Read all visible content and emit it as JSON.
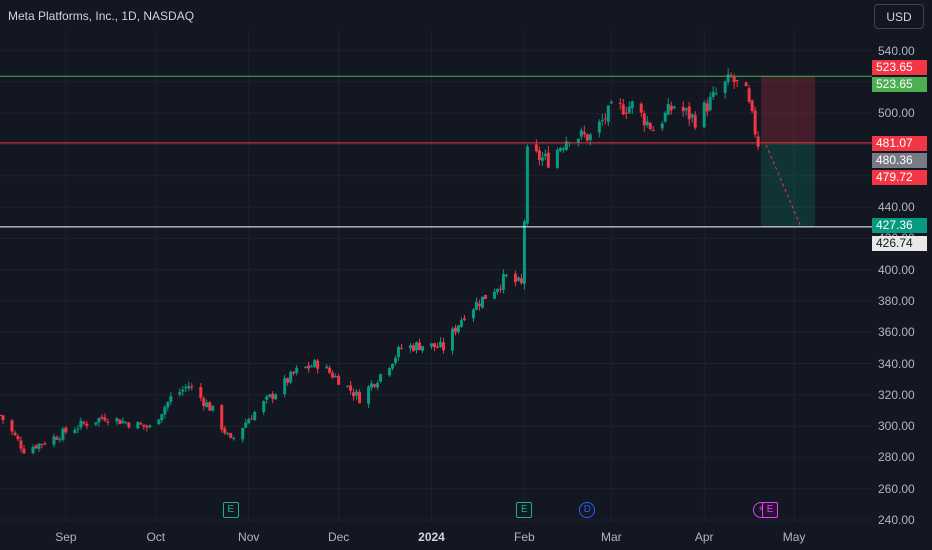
{
  "header": {
    "title": "Meta Platforms, Inc., 1D, NASDAQ",
    "currency": "USD"
  },
  "colors": {
    "up": "#089981",
    "down": "#f23645",
    "bg": "#131722",
    "green_line": "#4caf50",
    "red_line": "#f23645",
    "white_line": "#ffffff"
  },
  "chart_data": {
    "type": "candlestick",
    "yrange": [
      240,
      550
    ],
    "ytick_labels": [
      "540.00",
      "520.00",
      "500.00",
      "480.00",
      "460.00",
      "440.00",
      "420.00",
      "400.00",
      "380.00",
      "360.00",
      "340.00",
      "320.00",
      "300.00",
      "280.00",
      "260.00",
      "240.00"
    ],
    "ytick_values": [
      540,
      520,
      500,
      480,
      460,
      440,
      420,
      400,
      380,
      360,
      340,
      320,
      300,
      280,
      260,
      240
    ],
    "xtick_labels": [
      "Sep",
      "Oct",
      "Nov",
      "Dec",
      "2024",
      "Feb",
      "Mar",
      "Apr",
      "May"
    ],
    "xtick_dates": [
      "2023-09-01",
      "2023-10-01",
      "2023-11-01",
      "2023-12-01",
      "2024-01-01",
      "2024-02-01",
      "2024-03-01",
      "2024-04-01",
      "2024-05-01"
    ],
    "xrange": [
      "2023-08-10",
      "2024-05-27"
    ],
    "close_anchors": [
      [
        "2023-08-10",
        307
      ],
      [
        "2023-08-18",
        285
      ],
      [
        "2023-08-25",
        290
      ],
      [
        "2023-09-05",
        300
      ],
      [
        "2023-09-14",
        306
      ],
      [
        "2023-09-22",
        302
      ],
      [
        "2023-09-29",
        299
      ],
      [
        "2023-10-06",
        318
      ],
      [
        "2023-10-12",
        326
      ],
      [
        "2023-10-20",
        310
      ],
      [
        "2023-10-26",
        290
      ],
      [
        "2023-11-01",
        305
      ],
      [
        "2023-11-09",
        320
      ],
      [
        "2023-11-17",
        335
      ],
      [
        "2023-11-24",
        340
      ],
      [
        "2023-12-01",
        330
      ],
      [
        "2023-12-08",
        318
      ],
      [
        "2023-12-15",
        333
      ],
      [
        "2023-12-22",
        350
      ],
      [
        "2023-12-29",
        352
      ],
      [
        "2024-01-05",
        350
      ],
      [
        "2024-01-12",
        372
      ],
      [
        "2024-01-19",
        383
      ],
      [
        "2024-01-26",
        395
      ],
      [
        "2024-01-31",
        390
      ],
      [
        "2024-02-02",
        474
      ],
      [
        "2024-02-09",
        470
      ],
      [
        "2024-02-16",
        486
      ],
      [
        "2024-02-23",
        485
      ],
      [
        "2024-03-01",
        502
      ],
      [
        "2024-03-08",
        505
      ],
      [
        "2024-03-15",
        490
      ],
      [
        "2024-03-22",
        505
      ],
      [
        "2024-03-29",
        496
      ],
      [
        "2024-04-05",
        512
      ],
      [
        "2024-04-10",
        522
      ],
      [
        "2024-04-15",
        512
      ],
      [
        "2024-04-19",
        481
      ]
    ],
    "horizontal_lines": [
      {
        "price": 523.65,
        "color": "green"
      },
      {
        "price": 481.07,
        "color": "red"
      },
      {
        "price": 427.36,
        "color": "white"
      }
    ],
    "price_labels": [
      {
        "text": "523.65",
        "price": 523.65,
        "color": "#f23645",
        "offset": -9
      },
      {
        "text": "523.65",
        "price": 523.65,
        "color": "#4caf50",
        "offset": 8
      },
      {
        "text": "481.07",
        "price": 481.07,
        "color": "#f23645",
        "offset": 0
      },
      {
        "text": "480.36",
        "price": 480.36,
        "color": "#787b86",
        "offset": 16
      },
      {
        "text": "479.72",
        "price": 479.72,
        "color": "#f23645",
        "offset": 32
      },
      {
        "text": "427.36",
        "price": 427.36,
        "color": "#089981",
        "offset": -2
      },
      {
        "text": "426.74",
        "price": 426.74,
        "color": "#e8e8e8",
        "offset": 15
      }
    ],
    "position_tool": {
      "entry": 481.07,
      "stop": 523.65,
      "target": 427.36,
      "start": "2024-04-20",
      "end": "2024-05-08"
    },
    "events": [
      {
        "type": "E",
        "date": "2023-10-26"
      },
      {
        "type": "E",
        "date": "2024-02-01"
      },
      {
        "type": "D",
        "date": "2024-02-22"
      },
      {
        "type": "S",
        "date": "2024-04-20"
      },
      {
        "type": "E",
        "date": "2024-04-23"
      }
    ]
  }
}
